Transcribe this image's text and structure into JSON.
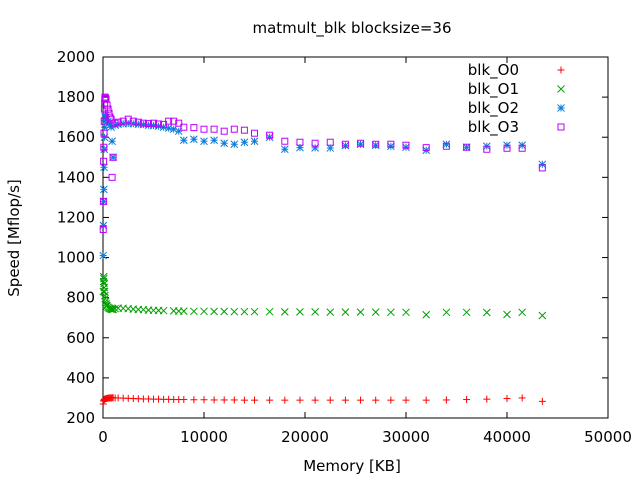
{
  "chart_data": {
    "type": "scatter",
    "title": "matmult_blk blocksize=36",
    "xlabel": "Memory [KB]",
    "ylabel": "Speed [Mflop/s]",
    "xlim": [
      0,
      50000
    ],
    "ylim": [
      200,
      2000
    ],
    "xticks": [
      "0",
      "10000",
      "20000",
      "30000",
      "40000",
      "50000"
    ],
    "yticks": [
      "200",
      "400",
      "600",
      "800",
      "1000",
      "1200",
      "1400",
      "1600",
      "1800",
      "2000"
    ],
    "grid": false,
    "legend_position": "top-right",
    "series": [
      {
        "name": "blk_O0",
        "marker": "plus",
        "color": "#ff0000",
        "points": [
          [
            30,
            270
          ],
          [
            60,
            285
          ],
          [
            100,
            290
          ],
          [
            150,
            293
          ],
          [
            200,
            295
          ],
          [
            300,
            297
          ],
          [
            400,
            298
          ],
          [
            500,
            299
          ],
          [
            600,
            300
          ],
          [
            700,
            300
          ],
          [
            800,
            300
          ],
          [
            900,
            301
          ],
          [
            1000,
            301
          ],
          [
            1200,
            300
          ],
          [
            1500,
            300
          ],
          [
            2000,
            299
          ],
          [
            2500,
            298
          ],
          [
            3000,
            297
          ],
          [
            3500,
            296
          ],
          [
            4000,
            295
          ],
          [
            4500,
            295
          ],
          [
            5000,
            294
          ],
          [
            5500,
            294
          ],
          [
            6000,
            293
          ],
          [
            6500,
            293
          ],
          [
            7000,
            292
          ],
          [
            7500,
            292
          ],
          [
            8000,
            292
          ],
          [
            9000,
            291
          ],
          [
            10000,
            291
          ],
          [
            11000,
            290
          ],
          [
            12000,
            290
          ],
          [
            13000,
            290
          ],
          [
            14000,
            289
          ],
          [
            15000,
            289
          ],
          [
            16500,
            289
          ],
          [
            18000,
            289
          ],
          [
            19500,
            289
          ],
          [
            21000,
            289
          ],
          [
            22500,
            289
          ],
          [
            24000,
            289
          ],
          [
            25500,
            289
          ],
          [
            27000,
            289
          ],
          [
            28500,
            289
          ],
          [
            30000,
            289
          ],
          [
            32000,
            289
          ],
          [
            34000,
            290
          ],
          [
            36000,
            292
          ],
          [
            38000,
            294
          ],
          [
            40000,
            297
          ],
          [
            41500,
            300
          ],
          [
            43500,
            283
          ]
        ]
      },
      {
        "name": "blk_O1",
        "marker": "x",
        "color": "#00a000",
        "points": [
          [
            30,
            830
          ],
          [
            50,
            880
          ],
          [
            70,
            905
          ],
          [
            90,
            895
          ],
          [
            110,
            870
          ],
          [
            130,
            850
          ],
          [
            150,
            830
          ],
          [
            180,
            810
          ],
          [
            210,
            795
          ],
          [
            250,
            780
          ],
          [
            300,
            770
          ],
          [
            350,
            762
          ],
          [
            400,
            758
          ],
          [
            500,
            752
          ],
          [
            600,
            748
          ],
          [
            700,
            745
          ],
          [
            800,
            743
          ],
          [
            900,
            742
          ],
          [
            1000,
            741
          ],
          [
            1200,
            745
          ],
          [
            1500,
            748
          ],
          [
            2000,
            747
          ],
          [
            2500,
            745
          ],
          [
            3000,
            743
          ],
          [
            3500,
            741
          ],
          [
            4000,
            740
          ],
          [
            4500,
            738
          ],
          [
            5000,
            737
          ],
          [
            5500,
            736
          ],
          [
            6000,
            735
          ],
          [
            7000,
            734
          ],
          [
            7500,
            733
          ],
          [
            8000,
            733
          ],
          [
            9000,
            732
          ],
          [
            10000,
            732
          ],
          [
            11000,
            731
          ],
          [
            12000,
            731
          ],
          [
            13000,
            730
          ],
          [
            14000,
            730
          ],
          [
            15000,
            730
          ],
          [
            16500,
            730
          ],
          [
            18000,
            729
          ],
          [
            19500,
            729
          ],
          [
            21000,
            729
          ],
          [
            22500,
            728
          ],
          [
            24000,
            728
          ],
          [
            25500,
            728
          ],
          [
            27000,
            728
          ],
          [
            28500,
            727
          ],
          [
            30000,
            727
          ],
          [
            32000,
            715
          ],
          [
            34000,
            727
          ],
          [
            36000,
            727
          ],
          [
            38000,
            726
          ],
          [
            40000,
            716
          ],
          [
            41500,
            727
          ],
          [
            43500,
            711
          ]
        ]
      },
      {
        "name": "blk_O2",
        "marker": "star",
        "color": "#0a7ad8",
        "points": [
          [
            20,
            1010
          ],
          [
            40,
            1160
          ],
          [
            60,
            1280
          ],
          [
            80,
            1340
          ],
          [
            100,
            1450
          ],
          [
            120,
            1540
          ],
          [
            140,
            1600
          ],
          [
            160,
            1650
          ],
          [
            180,
            1680
          ],
          [
            200,
            1700
          ],
          [
            250,
            1710
          ],
          [
            300,
            1700
          ],
          [
            400,
            1690
          ],
          [
            500,
            1680
          ],
          [
            600,
            1670
          ],
          [
            700,
            1660
          ],
          [
            800,
            1650
          ],
          [
            900,
            1580
          ],
          [
            1000,
            1500
          ],
          [
            1200,
            1660
          ],
          [
            1500,
            1665
          ],
          [
            2000,
            1667
          ],
          [
            2500,
            1668
          ],
          [
            3000,
            1667
          ],
          [
            3500,
            1665
          ],
          [
            4000,
            1663
          ],
          [
            4500,
            1660
          ],
          [
            5000,
            1658
          ],
          [
            5500,
            1655
          ],
          [
            6000,
            1650
          ],
          [
            6500,
            1645
          ],
          [
            7000,
            1640
          ],
          [
            7500,
            1630
          ],
          [
            8000,
            1585
          ],
          [
            9000,
            1590
          ],
          [
            10000,
            1580
          ],
          [
            11000,
            1585
          ],
          [
            12000,
            1570
          ],
          [
            13000,
            1565
          ],
          [
            14000,
            1575
          ],
          [
            15000,
            1580
          ],
          [
            16500,
            1600
          ],
          [
            18000,
            1540
          ],
          [
            19500,
            1548
          ],
          [
            21000,
            1547
          ],
          [
            22500,
            1546
          ],
          [
            24000,
            1558
          ],
          [
            25500,
            1565
          ],
          [
            27000,
            1560
          ],
          [
            28500,
            1555
          ],
          [
            30000,
            1550
          ],
          [
            32000,
            1535
          ],
          [
            34000,
            1565
          ],
          [
            36000,
            1550
          ],
          [
            38000,
            1555
          ],
          [
            40000,
            1560
          ],
          [
            41500,
            1560
          ],
          [
            43500,
            1465
          ]
        ]
      },
      {
        "name": "blk_O3",
        "marker": "square",
        "color": "#c000ff",
        "points": [
          [
            20,
            1140
          ],
          [
            40,
            1280
          ],
          [
            60,
            1480
          ],
          [
            80,
            1550
          ],
          [
            100,
            1620
          ],
          [
            120,
            1680
          ],
          [
            140,
            1740
          ],
          [
            160,
            1770
          ],
          [
            180,
            1790
          ],
          [
            200,
            1800
          ],
          [
            250,
            1795
          ],
          [
            300,
            1790
          ],
          [
            400,
            1760
          ],
          [
            500,
            1740
          ],
          [
            600,
            1720
          ],
          [
            700,
            1700
          ],
          [
            800,
            1690
          ],
          [
            900,
            1400
          ],
          [
            1000,
            1500
          ],
          [
            1200,
            1670
          ],
          [
            1500,
            1675
          ],
          [
            2000,
            1680
          ],
          [
            2500,
            1690
          ],
          [
            3000,
            1680
          ],
          [
            3500,
            1675
          ],
          [
            4000,
            1670
          ],
          [
            4500,
            1668
          ],
          [
            5000,
            1670
          ],
          [
            5500,
            1666
          ],
          [
            6000,
            1664
          ],
          [
            6500,
            1680
          ],
          [
            7000,
            1680
          ],
          [
            7500,
            1670
          ],
          [
            8000,
            1650
          ],
          [
            9000,
            1648
          ],
          [
            10000,
            1640
          ],
          [
            11000,
            1640
          ],
          [
            12000,
            1630
          ],
          [
            13000,
            1640
          ],
          [
            14000,
            1635
          ],
          [
            15000,
            1620
          ],
          [
            16500,
            1610
          ],
          [
            18000,
            1580
          ],
          [
            19500,
            1575
          ],
          [
            21000,
            1570
          ],
          [
            22500,
            1575
          ],
          [
            24000,
            1565
          ],
          [
            25500,
            1570
          ],
          [
            27000,
            1565
          ],
          [
            28500,
            1565
          ],
          [
            30000,
            1560
          ],
          [
            32000,
            1548
          ],
          [
            34000,
            1555
          ],
          [
            36000,
            1550
          ],
          [
            38000,
            1540
          ],
          [
            40000,
            1545
          ],
          [
            41500,
            1545
          ],
          [
            43500,
            1447
          ]
        ]
      }
    ]
  }
}
